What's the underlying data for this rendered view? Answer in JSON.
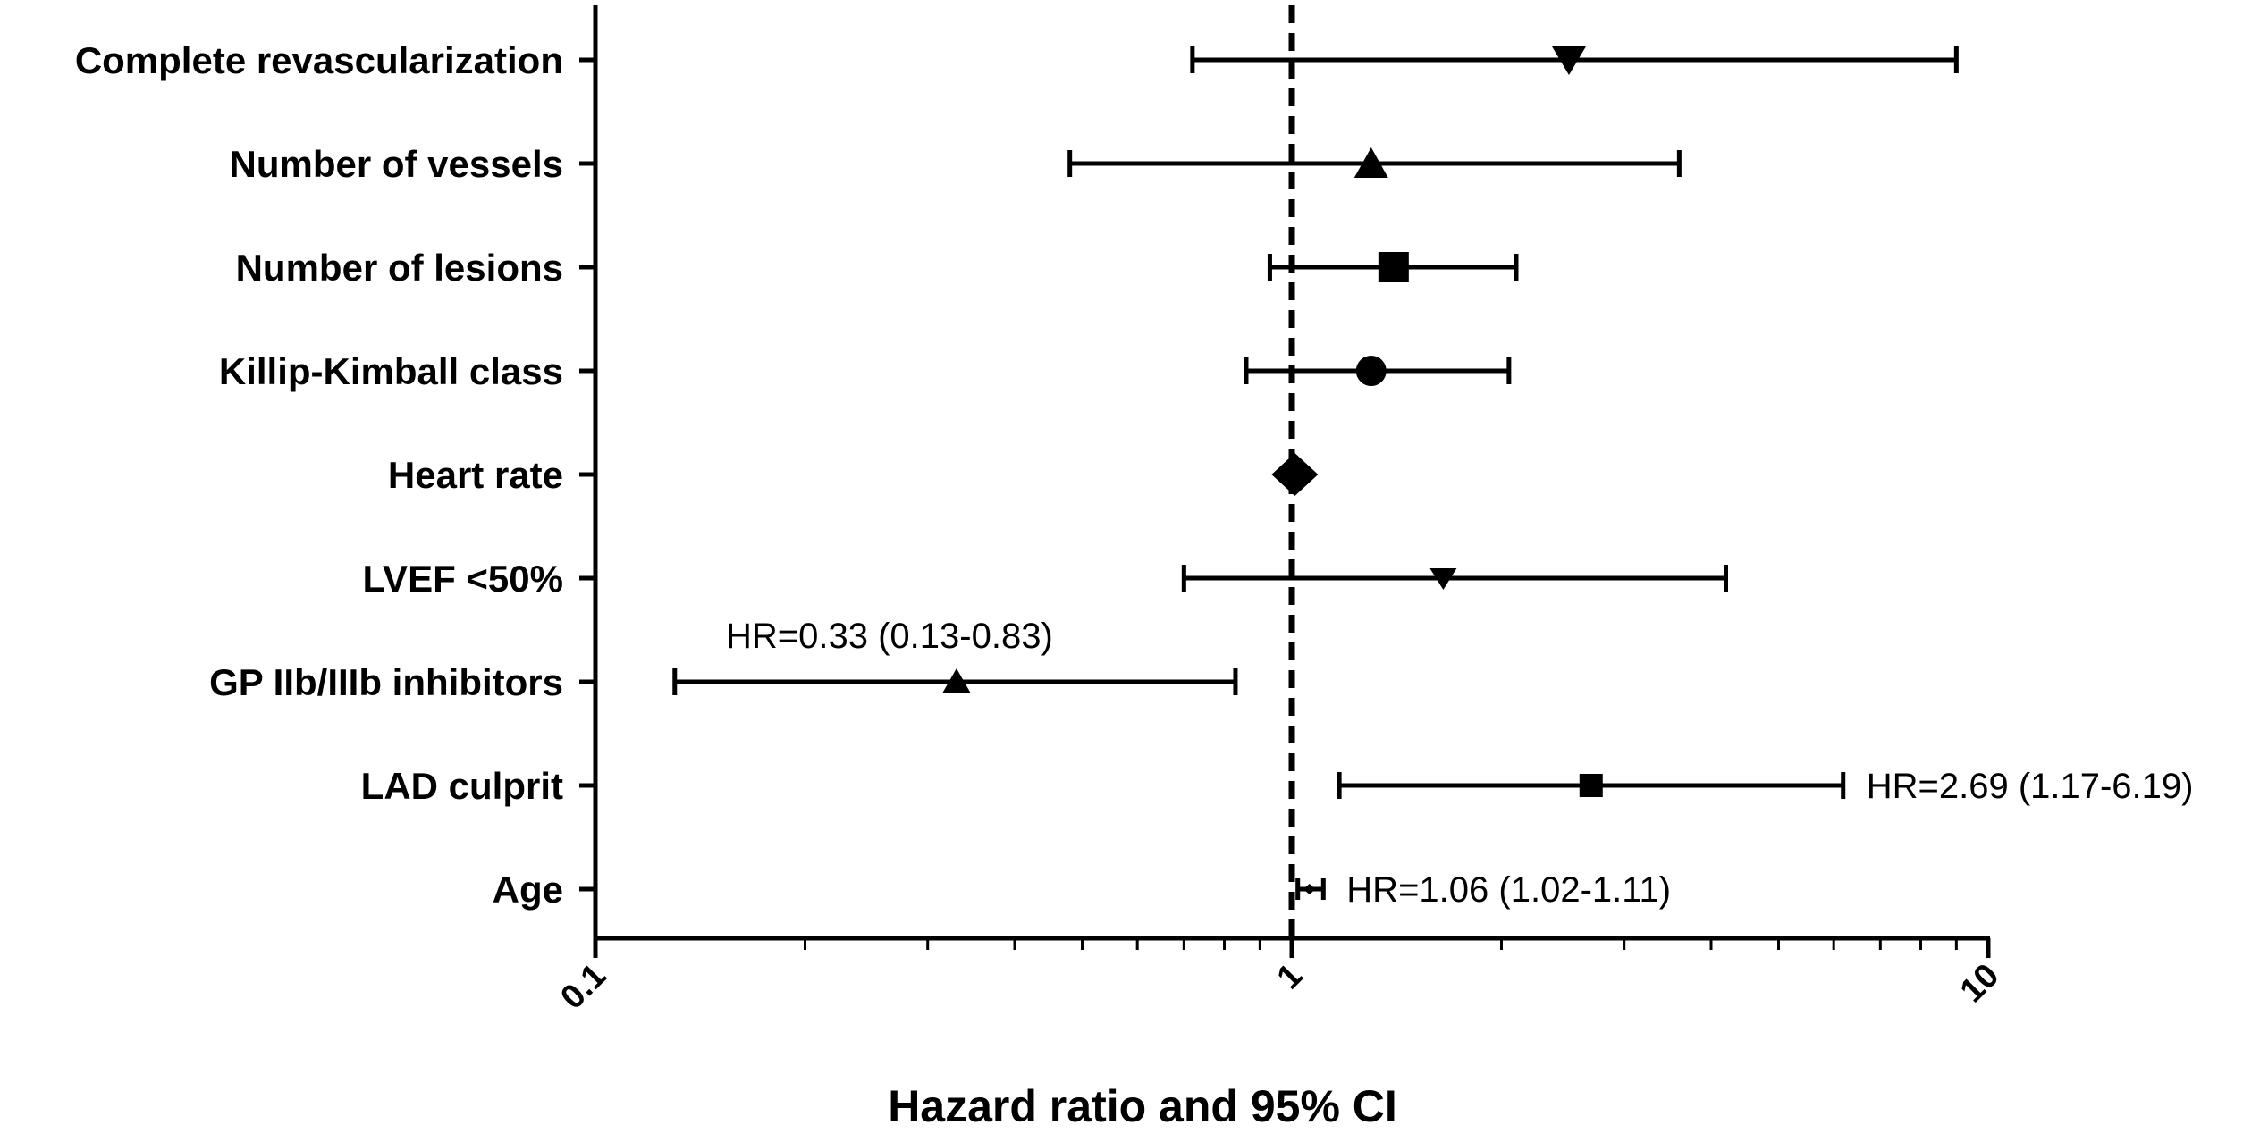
{
  "chart_data": {
    "type": "forest",
    "xlabel": "Hazard ratio and 95% CI",
    "xscale": "log",
    "xlim": [
      0.1,
      10
    ],
    "xticks": [
      "0.1",
      "1",
      "10"
    ],
    "reference_line": 1,
    "rows": [
      {
        "label": "Complete revascularization",
        "hr": 2.5,
        "lo": 0.72,
        "hi": 9.0,
        "marker": "triangle-down-large"
      },
      {
        "label": "Number of vessels",
        "hr": 1.3,
        "lo": 0.48,
        "hi": 3.6,
        "marker": "triangle-up-large"
      },
      {
        "label": "Number of lesions",
        "hr": 1.4,
        "lo": 0.93,
        "hi": 2.1,
        "marker": "square-large"
      },
      {
        "label": "Killip-Kimball class",
        "hr": 1.3,
        "lo": 0.86,
        "hi": 2.05,
        "marker": "circle"
      },
      {
        "label": "Heart rate",
        "hr": 1.01,
        "lo": 1.0,
        "hi": 1.02,
        "marker": "diamond"
      },
      {
        "label": "LVEF <50%",
        "hr": 1.65,
        "lo": 0.7,
        "hi": 4.2,
        "marker": "triangle-down"
      },
      {
        "label": "GP IIb/IIIb inhibitors",
        "hr": 0.33,
        "lo": 0.13,
        "hi": 0.83,
        "marker": "triangle-up"
      },
      {
        "label": "LAD culprit",
        "hr": 2.69,
        "lo": 1.17,
        "hi": 6.19,
        "marker": "square"
      },
      {
        "label": "Age",
        "hr": 1.06,
        "lo": 1.02,
        "hi": 1.11,
        "marker": "diamond-small"
      }
    ],
    "annotations": [
      {
        "text": "HR=0.33 (0.13-0.83)",
        "row": 6,
        "position": "above"
      },
      {
        "text": "HR=2.69 (1.17-6.19)",
        "row": 7,
        "position": "right"
      },
      {
        "text": "HR=1.06 (1.02-1.11)",
        "row": 8,
        "position": "right"
      }
    ]
  }
}
